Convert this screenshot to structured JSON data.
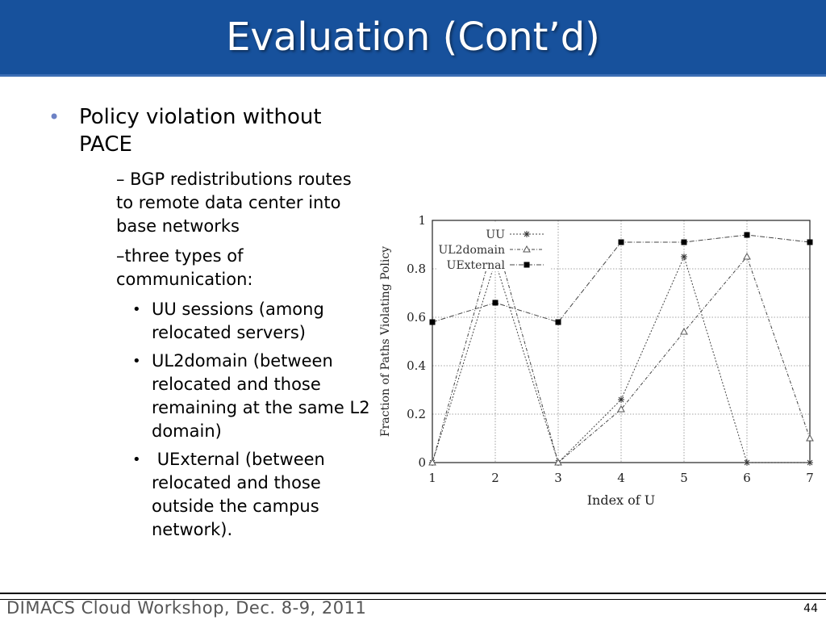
{
  "slide": {
    "title": "Evaluation (Cont’d)",
    "bullet_main": "Policy violation without PACE",
    "sub1": "–  BGP redistributions routes to remote data center into base networks",
    "sub2": "–three types of communication:",
    "items": [
      "UU sessions (among relocated servers)",
      "UL2domain (between relocated and those remaining at the same L2 domain)",
      " UExternal (between relocated and those outside the campus network)."
    ],
    "footer": "DIMACS Cloud Workshop, Dec. 8-9, 2011",
    "page_number": "44",
    "colors": {
      "title_bar": "#17519c",
      "bullet": "#6d82c5"
    }
  },
  "chart_data": {
    "type": "line",
    "title": "",
    "xlabel": "Index of U",
    "ylabel": "Fraction of Paths Violating Policy",
    "x": [
      1,
      2,
      3,
      4,
      5,
      6,
      7
    ],
    "xlim": [
      1,
      7
    ],
    "ylim": [
      0,
      1
    ],
    "yticks": [
      "0",
      "0.2",
      "0.4",
      "0.6",
      "0.8",
      "1"
    ],
    "xticks": [
      "1",
      "2",
      "3",
      "4",
      "5",
      "6",
      "7"
    ],
    "grid": true,
    "legend": "top-left",
    "series": [
      {
        "name": "UU",
        "marker": "asterisk",
        "values": [
          0,
          0.83,
          0,
          0.26,
          0.85,
          0,
          0
        ]
      },
      {
        "name": "UL2domain",
        "marker": "triangle",
        "values": [
          0,
          0.93,
          0,
          0.22,
          0.54,
          0.85,
          0.1
        ]
      },
      {
        "name": "UExternal",
        "marker": "square",
        "values": [
          0.58,
          0.66,
          0.58,
          0.91,
          0.91,
          0.94,
          0.91
        ]
      }
    ]
  }
}
